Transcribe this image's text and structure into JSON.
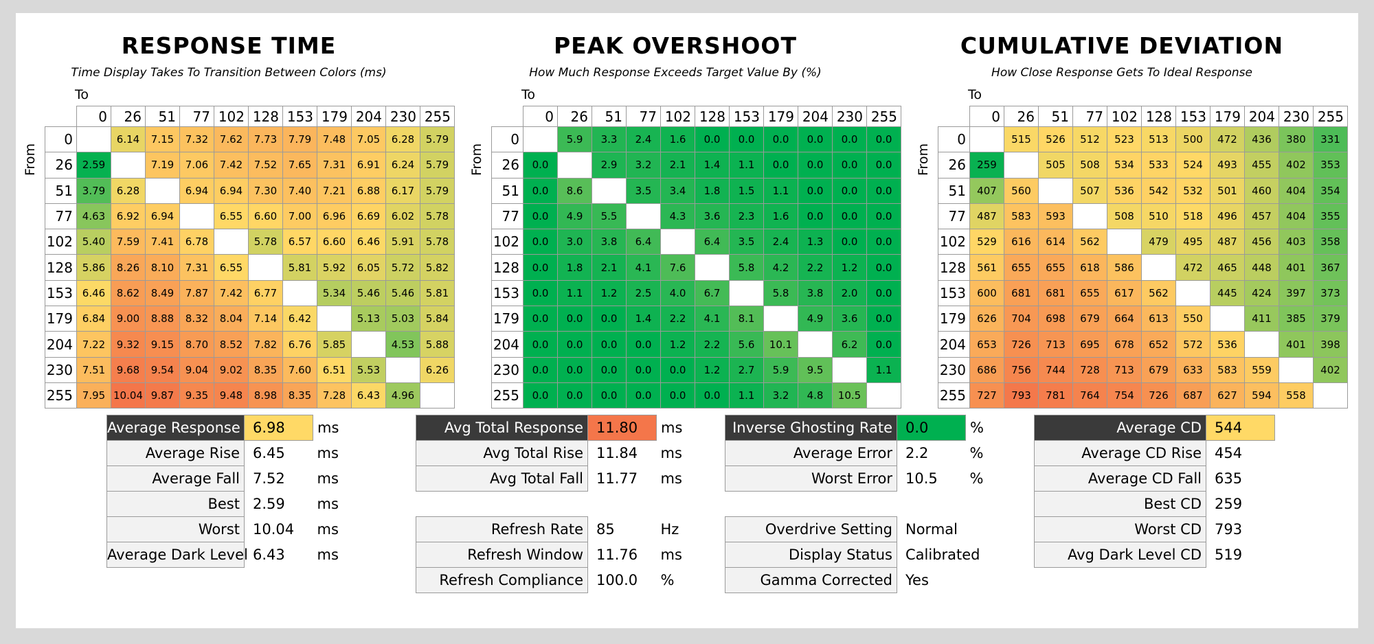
{
  "labels": {
    "to": "To",
    "from": "From"
  },
  "colors": {
    "good": "#00b050",
    "mid": "#ffd966",
    "bad": "#f4764a"
  },
  "chart_data": [
    {
      "type": "heatmap",
      "title": "RESPONSE TIME",
      "subtitle": "Time Display Takes To Transition Between Colors (ms)",
      "xlabel": "To",
      "ylabel": "From",
      "x": [
        "0",
        "26",
        "51",
        "77",
        "102",
        "128",
        "153",
        "179",
        "204",
        "230",
        "255"
      ],
      "y": [
        "0",
        "26",
        "51",
        "77",
        "102",
        "128",
        "153",
        "179",
        "204",
        "230",
        "255"
      ],
      "scale": {
        "min": 2.5,
        "mid": 6.5,
        "max": 10.0
      },
      "values": [
        [
          "",
          "6.14",
          "7.15",
          "7.32",
          "7.62",
          "7.73",
          "7.79",
          "7.48",
          "7.05",
          "6.28",
          "5.79"
        ],
        [
          "2.59",
          "",
          "7.19",
          "7.06",
          "7.42",
          "7.52",
          "7.65",
          "7.31",
          "6.91",
          "6.24",
          "5.79"
        ],
        [
          "3.79",
          "6.28",
          "",
          "6.94",
          "6.94",
          "7.30",
          "7.40",
          "7.21",
          "6.88",
          "6.17",
          "5.79"
        ],
        [
          "4.63",
          "6.92",
          "6.94",
          "",
          "6.55",
          "6.60",
          "7.00",
          "6.96",
          "6.69",
          "6.02",
          "5.78"
        ],
        [
          "5.40",
          "7.59",
          "7.41",
          "6.78",
          "",
          "5.78",
          "6.57",
          "6.60",
          "6.46",
          "5.91",
          "5.78"
        ],
        [
          "5.86",
          "8.26",
          "8.10",
          "7.31",
          "6.55",
          "",
          "5.81",
          "5.92",
          "6.05",
          "5.72",
          "5.82"
        ],
        [
          "6.46",
          "8.62",
          "8.49",
          "7.87",
          "7.42",
          "6.77",
          "",
          "5.34",
          "5.46",
          "5.46",
          "5.81"
        ],
        [
          "6.84",
          "9.00",
          "8.88",
          "8.32",
          "8.04",
          "7.14",
          "6.42",
          "",
          "5.13",
          "5.03",
          "5.84"
        ],
        [
          "7.22",
          "9.32",
          "9.15",
          "8.70",
          "8.52",
          "7.82",
          "6.76",
          "5.85",
          "",
          "4.53",
          "5.88"
        ],
        [
          "7.51",
          "9.68",
          "9.54",
          "9.04",
          "9.02",
          "8.35",
          "7.60",
          "6.51",
          "5.53",
          "",
          "6.26"
        ],
        [
          "7.95",
          "10.04",
          "9.87",
          "9.35",
          "9.48",
          "8.98",
          "8.35",
          "7.28",
          "6.43",
          "4.96",
          ""
        ]
      ]
    },
    {
      "type": "heatmap",
      "title": "PEAK OVERSHOOT",
      "subtitle": "How Much Response Exceeds Target Value By (%)",
      "xlabel": "To",
      "ylabel": "From",
      "x": [
        "0",
        "26",
        "51",
        "77",
        "102",
        "128",
        "153",
        "179",
        "204",
        "230",
        "255"
      ],
      "y": [
        "0",
        "26",
        "51",
        "77",
        "102",
        "128",
        "153",
        "179",
        "204",
        "230",
        "255"
      ],
      "scale": {
        "min": 0,
        "mid": 25,
        "max": 50
      },
      "values": [
        [
          "",
          "5.9",
          "3.3",
          "2.4",
          "1.6",
          "0.0",
          "0.0",
          "0.0",
          "0.0",
          "0.0",
          "0.0"
        ],
        [
          "0.0",
          "",
          "2.9",
          "3.2",
          "2.1",
          "1.4",
          "1.1",
          "0.0",
          "0.0",
          "0.0",
          "0.0"
        ],
        [
          "0.0",
          "8.6",
          "",
          "3.5",
          "3.4",
          "1.8",
          "1.5",
          "1.1",
          "0.0",
          "0.0",
          "0.0"
        ],
        [
          "0.0",
          "4.9",
          "5.5",
          "",
          "4.3",
          "3.6",
          "2.3",
          "1.6",
          "0.0",
          "0.0",
          "0.0"
        ],
        [
          "0.0",
          "3.0",
          "3.8",
          "6.4",
          "",
          "6.4",
          "3.5",
          "2.4",
          "1.3",
          "0.0",
          "0.0"
        ],
        [
          "0.0",
          "1.8",
          "2.1",
          "4.1",
          "7.6",
          "",
          "5.8",
          "4.2",
          "2.2",
          "1.2",
          "0.0"
        ],
        [
          "0.0",
          "1.1",
          "1.2",
          "2.5",
          "4.0",
          "6.7",
          "",
          "5.8",
          "3.8",
          "2.0",
          "0.0"
        ],
        [
          "0.0",
          "0.0",
          "0.0",
          "1.4",
          "2.2",
          "4.1",
          "8.1",
          "",
          "4.9",
          "3.6",
          "0.0"
        ],
        [
          "0.0",
          "0.0",
          "0.0",
          "0.0",
          "1.2",
          "2.2",
          "5.6",
          "10.1",
          "",
          "6.2",
          "0.0"
        ],
        [
          "0.0",
          "0.0",
          "0.0",
          "0.0",
          "0.0",
          "1.2",
          "2.7",
          "5.9",
          "9.5",
          "",
          "1.1"
        ],
        [
          "0.0",
          "0.0",
          "0.0",
          "0.0",
          "0.0",
          "0.0",
          "1.1",
          "3.2",
          "4.8",
          "10.5",
          ""
        ]
      ]
    },
    {
      "type": "heatmap",
      "title": "CUMULATIVE DEVIATION",
      "subtitle": "How Close Response Gets To Ideal Response",
      "xlabel": "To",
      "ylabel": "From",
      "x": [
        "0",
        "26",
        "51",
        "77",
        "102",
        "128",
        "153",
        "179",
        "204",
        "230",
        "255"
      ],
      "y": [
        "0",
        "26",
        "51",
        "77",
        "102",
        "128",
        "153",
        "179",
        "204",
        "230",
        "255"
      ],
      "scale": {
        "min": 250,
        "mid": 520,
        "max": 800
      },
      "values": [
        [
          "",
          "515",
          "526",
          "512",
          "523",
          "513",
          "500",
          "472",
          "436",
          "380",
          "331"
        ],
        [
          "259",
          "",
          "505",
          "508",
          "534",
          "533",
          "524",
          "493",
          "455",
          "402",
          "353"
        ],
        [
          "407",
          "560",
          "",
          "507",
          "536",
          "542",
          "532",
          "501",
          "460",
          "404",
          "354"
        ],
        [
          "487",
          "583",
          "593",
          "",
          "508",
          "510",
          "518",
          "496",
          "457",
          "404",
          "355"
        ],
        [
          "529",
          "616",
          "614",
          "562",
          "",
          "479",
          "495",
          "487",
          "456",
          "403",
          "358"
        ],
        [
          "561",
          "655",
          "655",
          "618",
          "586",
          "",
          "472",
          "465",
          "448",
          "401",
          "367"
        ],
        [
          "600",
          "681",
          "681",
          "655",
          "617",
          "562",
          "",
          "445",
          "424",
          "397",
          "373"
        ],
        [
          "626",
          "704",
          "698",
          "679",
          "664",
          "613",
          "550",
          "",
          "411",
          "385",
          "379"
        ],
        [
          "653",
          "726",
          "713",
          "695",
          "678",
          "652",
          "572",
          "536",
          "",
          "401",
          "398"
        ],
        [
          "686",
          "756",
          "744",
          "728",
          "713",
          "679",
          "633",
          "583",
          "559",
          "",
          "402"
        ],
        [
          "727",
          "793",
          "781",
          "764",
          "754",
          "726",
          "687",
          "627",
          "594",
          "558",
          ""
        ]
      ]
    }
  ],
  "stats": {
    "response": [
      {
        "label": "Average Response",
        "value": "6.98",
        "unit": "ms",
        "head": true,
        "fill": "#ffd966"
      },
      {
        "label": "Average Rise",
        "value": "6.45",
        "unit": "ms"
      },
      {
        "label": "Average Fall",
        "value": "7.52",
        "unit": "ms"
      },
      {
        "label": "Best",
        "value": "2.59",
        "unit": "ms"
      },
      {
        "label": "Worst",
        "value": "10.04",
        "unit": "ms"
      },
      {
        "label": "Average Dark Level",
        "value": "6.43",
        "unit": "ms"
      }
    ],
    "total": [
      {
        "label": "Avg Total Response",
        "value": "11.80",
        "unit": "ms",
        "head": true,
        "fill": "#f4764a"
      },
      {
        "label": "Avg Total Rise",
        "value": "11.84",
        "unit": "ms"
      },
      {
        "label": "Avg Total Fall",
        "value": "11.77",
        "unit": "ms"
      },
      {
        "gap": true
      },
      {
        "label": "Refresh Rate",
        "value": "85",
        "unit": "Hz"
      },
      {
        "label": "Refresh Window",
        "value": "11.76",
        "unit": "ms"
      },
      {
        "label": "Refresh Compliance",
        "value": "100.0",
        "unit": "%"
      }
    ],
    "overshoot": [
      {
        "label": "Inverse Ghosting Rate",
        "value": "0.0",
        "unit": "%",
        "head": true,
        "fill": "#00b050"
      },
      {
        "label": "Average Error",
        "value": "2.2",
        "unit": "%"
      },
      {
        "label": "Worst Error",
        "value": "10.5",
        "unit": "%"
      },
      {
        "gap": true
      },
      {
        "label": "Overdrive Setting",
        "value": "Normal",
        "unit": ""
      },
      {
        "label": "Display Status",
        "value": "Calibrated",
        "unit": ""
      },
      {
        "label": "Gamma Corrected",
        "value": "Yes",
        "unit": ""
      }
    ],
    "cd": [
      {
        "label": "Average CD",
        "value": "544",
        "unit": "",
        "head": true,
        "fill": "#ffd966"
      },
      {
        "label": "Average CD Rise",
        "value": "454",
        "unit": ""
      },
      {
        "label": "Average CD Fall",
        "value": "635",
        "unit": ""
      },
      {
        "label": "Best CD",
        "value": "259",
        "unit": ""
      },
      {
        "label": "Worst CD",
        "value": "793",
        "unit": ""
      },
      {
        "label": "Avg Dark Level CD",
        "value": "519",
        "unit": ""
      }
    ]
  }
}
